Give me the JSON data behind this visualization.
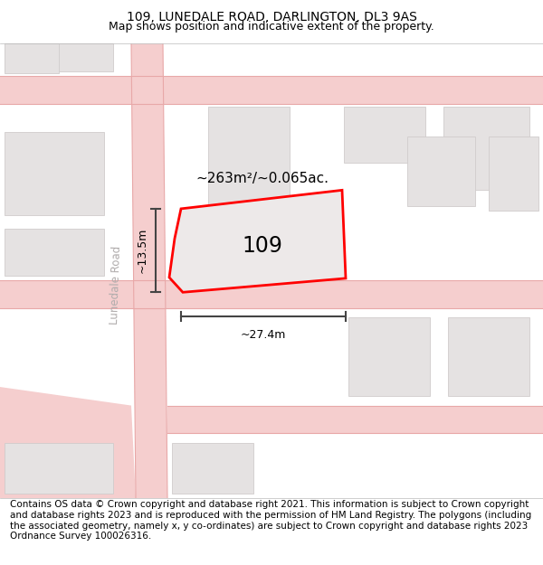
{
  "title": "109, LUNEDALE ROAD, DARLINGTON, DL3 9AS",
  "subtitle": "Map shows position and indicative extent of the property.",
  "footer": "Contains OS data © Crown copyright and database right 2021. This information is subject to Crown copyright and database rights 2023 and is reproduced with the permission of HM Land Registry. The polygons (including the associated geometry, namely x, y co-ordinates) are subject to Crown copyright and database rights 2023 Ordnance Survey 100026316.",
  "map_bg": "#f2f0f0",
  "road_fill": "#f5cece",
  "road_edge": "#e8a8a8",
  "building_fill": "#e5e2e2",
  "building_edge": "#d0cccc",
  "highlight_fill": "#ede9e9",
  "highlight_edge": "#ff0000",
  "plot_label": "109",
  "area_label": "~263m²/~0.065ac.",
  "width_label": "~27.4m",
  "height_label": "~13.5m",
  "road_label_color": "#b0acac",
  "title_fontsize": 10,
  "subtitle_fontsize": 9,
  "footer_fontsize": 7.5,
  "annotation_color": "#444444"
}
